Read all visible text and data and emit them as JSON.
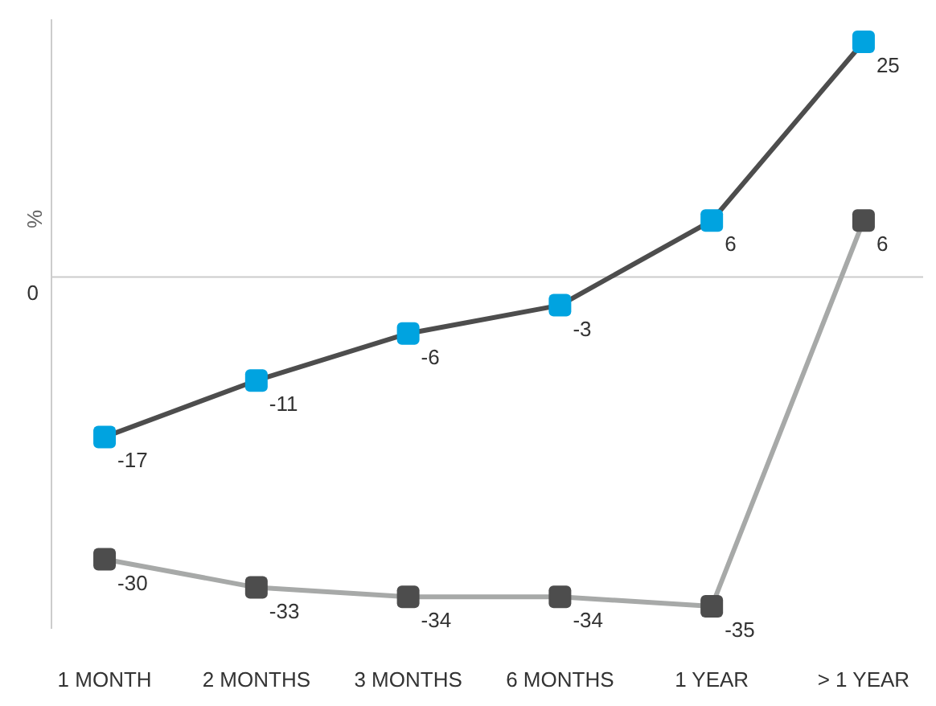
{
  "chart_data": {
    "type": "line",
    "ylabel": "%",
    "categories": [
      "1 MONTH",
      "2 MONTHS",
      "3 MONTHS",
      "6 MONTHS",
      "1 YEAR",
      "> 1 YEAR"
    ],
    "series": [
      {
        "color": "#4d4d4d",
        "colors": [
          "#00a3e0",
          "#00a3e0",
          "#00a3e0",
          "#00a3e0",
          "#00a3e0",
          "#00a3e0"
        ],
        "values": [
          -17,
          -11,
          -6,
          -3,
          6,
          25
        ]
      },
      {
        "color": "#a7a9a8",
        "colors": [
          "#4d4d4d",
          "#4d4d4d",
          "#4d4d4d",
          "#4d4d4d",
          "#4d4d4d",
          "#4d4d4d"
        ],
        "values": [
          -30,
          -33,
          -34,
          -34,
          -35,
          6
        ]
      }
    ],
    "ref_lines": [
      {
        "axis": "y",
        "value": 0,
        "label": "0",
        "color": "#cccccc"
      }
    ],
    "data_labels": true,
    "marker": "square",
    "line_style": "solid"
  }
}
